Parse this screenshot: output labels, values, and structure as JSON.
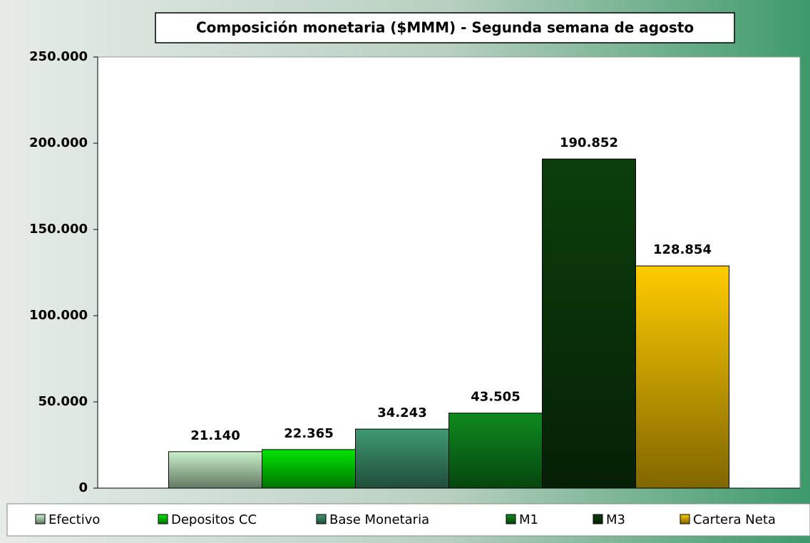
{
  "chart_data": {
    "type": "bar",
    "title": "Composición monetaria ($MMM)  - Segunda semana de agosto",
    "categories": [
      null
    ],
    "series": [
      {
        "name": "Efectivo",
        "color": "#c8f0c8",
        "values": [
          21140
        ],
        "value_labels": [
          "21.140"
        ]
      },
      {
        "name": "Depositos CC",
        "color": "#00e600",
        "values": [
          22365
        ],
        "value_labels": [
          "22.365"
        ]
      },
      {
        "name": "Base Monetaria",
        "color": "#3f9a72",
        "values": [
          34243
        ],
        "value_labels": [
          "34.243"
        ]
      },
      {
        "name": "M1",
        "color": "#0e8a1e",
        "values": [
          43505
        ],
        "value_labels": [
          "43.505"
        ]
      },
      {
        "name": "M3",
        "color": "#0b3f0b",
        "values": [
          190852
        ],
        "value_labels": [
          "190.852"
        ]
      },
      {
        "name": "Cartera Neta",
        "color": "#ffcc00",
        "values": [
          128854
        ],
        "value_labels": [
          "128.854"
        ]
      }
    ],
    "ylim": [
      0,
      250000
    ],
    "yticks": [
      0,
      {
        "value": 50000,
        "label": "50.000"
      },
      {
        "value": 100000,
        "label": "100.000"
      },
      {
        "value": 150000,
        "label": "150.000"
      },
      {
        "value": 200000,
        "label": "200.000"
      },
      {
        "value": 250000,
        "label": "250.000"
      }
    ],
    "grid": false,
    "legend": "bottom"
  }
}
